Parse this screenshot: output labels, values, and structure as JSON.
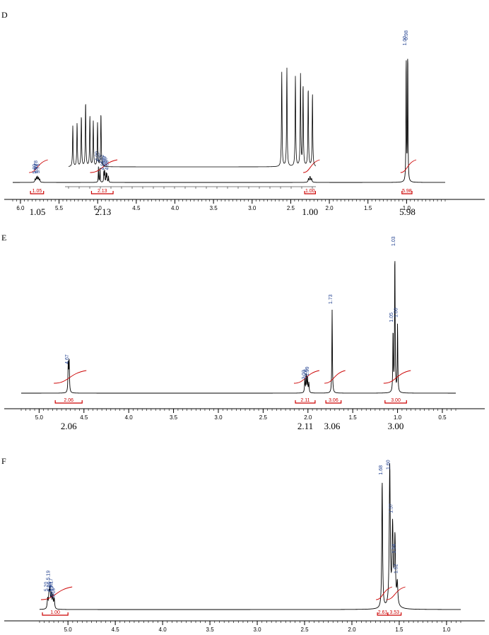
{
  "colors": {
    "spectrum": "#000000",
    "integral": "#cc0000",
    "peak_label": "#1f3f8f",
    "axis": "#000000"
  },
  "chart_data": [
    {
      "type": "line",
      "panel_label": "D",
      "xlim": [
        6.1,
        0.5
      ],
      "ticks": [
        "6.0",
        "5.5",
        "5.0",
        "4.5",
        "4.0",
        "3.5",
        "3.0",
        "2.5",
        "2.0",
        "1.5",
        "1.0"
      ],
      "tick_values": [
        6.0,
        5.5,
        5.0,
        4.5,
        4.0,
        3.5,
        3.0,
        2.5,
        2.0,
        1.5,
        1.0
      ],
      "peak_labels": [
        {
          "text": "5.80",
          "x": 5.8
        },
        {
          "text": "5.78",
          "x": 5.78
        },
        {
          "text": "5.77",
          "x": 5.77
        },
        {
          "text": "5.75",
          "x": 5.75
        },
        {
          "text": "4.99",
          "x": 4.99
        },
        {
          "text": "4.97",
          "x": 4.97
        },
        {
          "text": "4.92",
          "x": 4.92
        },
        {
          "text": "4.92",
          "x": 4.915
        },
        {
          "text": "4.89",
          "x": 4.89
        },
        {
          "text": "4.88",
          "x": 4.88
        },
        {
          "text": "4.86",
          "x": 4.86
        },
        {
          "text": "1.00",
          "x": 1.005
        },
        {
          "text": "0.98",
          "x": 0.985
        }
      ],
      "integrals_red": [
        {
          "text": "1.05",
          "from": 5.87,
          "to": 5.7
        },
        {
          "text": "2.13",
          "from": 5.08,
          "to": 4.8
        },
        {
          "text": "1.00",
          "from": 2.32,
          "to": 2.18
        },
        {
          "text": "5.98",
          "from": 1.06,
          "to": 0.93
        }
      ],
      "integrals_black": [
        {
          "text": "1.05",
          "x": 5.78
        },
        {
          "text": "2.13",
          "x": 4.93
        },
        {
          "text": "1.00",
          "x": 2.25
        },
        {
          "text": "5.98",
          "x": 0.99
        }
      ]
    },
    {
      "type": "line",
      "panel_label": "E",
      "xlim": [
        5.2,
        0.35
      ],
      "ticks": [
        "5.0",
        "4.5",
        "4.0",
        "3.5",
        "3.0",
        "2.5",
        "2.0",
        "1.5",
        "1.0",
        "0.5"
      ],
      "tick_values": [
        5.0,
        4.5,
        4.0,
        3.5,
        3.0,
        2.5,
        2.0,
        1.5,
        1.0,
        0.5
      ],
      "peak_labels": [
        {
          "text": "4.67",
          "x": 4.67
        },
        {
          "text": "2.03",
          "x": 2.03
        },
        {
          "text": "2.01",
          "x": 2.01
        },
        {
          "text": "1.99",
          "x": 1.99
        },
        {
          "text": "1.73",
          "x": 1.73
        },
        {
          "text": "1.05",
          "x": 1.05
        },
        {
          "text": "1.03",
          "x": 1.03
        },
        {
          "text": "1.00",
          "x": 1.0
        }
      ],
      "integrals_red": [
        {
          "text": "2.06",
          "from": 4.82,
          "to": 4.52
        },
        {
          "text": "2.11",
          "from": 2.14,
          "to": 1.92
        },
        {
          "text": "3.06",
          "from": 1.8,
          "to": 1.63
        },
        {
          "text": "3.00",
          "from": 1.14,
          "to": 0.9
        }
      ],
      "integrals_black": [
        {
          "text": "2.06",
          "x": 4.67
        },
        {
          "text": "2.11",
          "x": 2.03
        },
        {
          "text": "3.06",
          "x": 1.73
        },
        {
          "text": "3.00",
          "x": 1.02
        }
      ]
    },
    {
      "type": "line",
      "panel_label": "F",
      "xlim": [
        5.3,
        0.85
      ],
      "ticks": [
        "5.0",
        "4.5",
        "4.0",
        "3.5",
        "3.0",
        "2.5",
        "2.0",
        "1.5",
        "1.0"
      ],
      "tick_values": [
        5.0,
        4.5,
        4.0,
        3.5,
        3.0,
        2.5,
        2.0,
        1.5,
        1.0
      ],
      "peak_labels": [
        {
          "text": "5.20",
          "x": 5.215
        },
        {
          "text": "5.19",
          "x": 5.19
        },
        {
          "text": "5.19",
          "x": 5.18
        },
        {
          "text": "5.18",
          "x": 5.17
        },
        {
          "text": "5.17",
          "x": 5.16
        },
        {
          "text": "5.17",
          "x": 5.15
        },
        {
          "text": "5.15",
          "x": 5.14
        },
        {
          "text": "1.68",
          "x": 1.68
        },
        {
          "text": "1.60",
          "x": 1.6
        },
        {
          "text": "1.57",
          "x": 1.57
        },
        {
          "text": "1.54",
          "x": 1.54
        },
        {
          "text": "1.52",
          "x": 1.52
        }
      ],
      "integrals_red": [
        {
          "text": "1.00",
          "from": 5.27,
          "to": 5.0
        },
        {
          "text": "2.61",
          "from": 1.73,
          "to": 1.62
        },
        {
          "text": "3.53",
          "from": 1.62,
          "to": 1.48
        }
      ],
      "integrals_black": []
    }
  ]
}
